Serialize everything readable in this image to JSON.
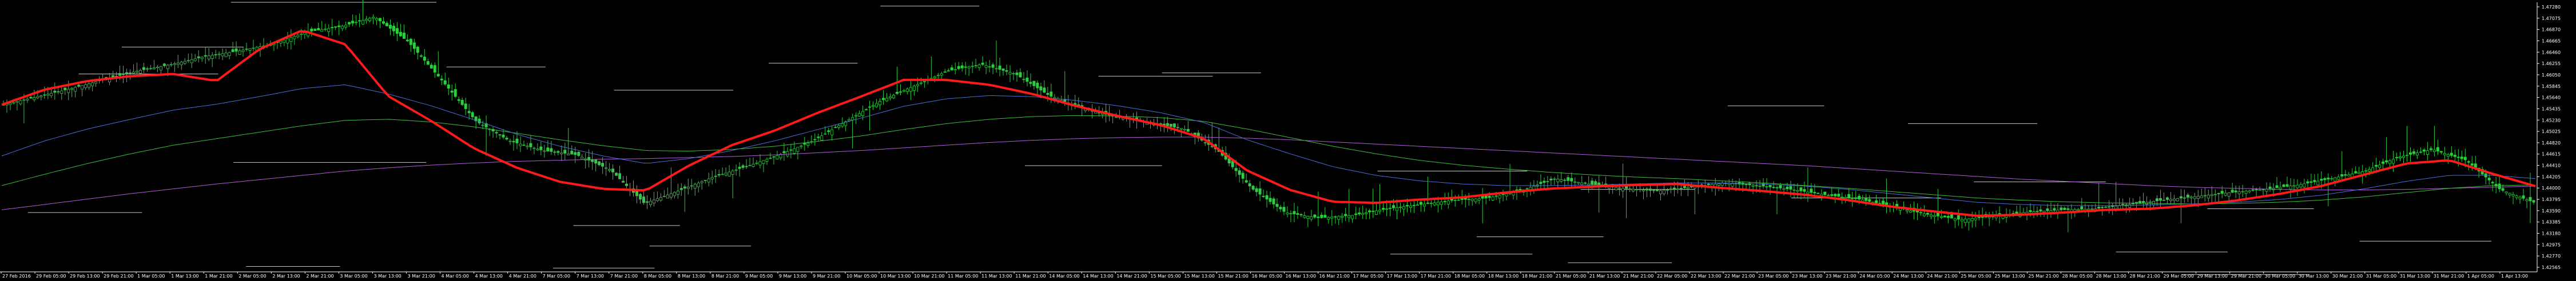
{
  "chart_data": {
    "type": "line",
    "title": "",
    "xlabel": "",
    "ylabel": "",
    "grid": false,
    "legend": "none",
    "ylim": [
      1.4245,
      1.4745
    ],
    "colors": {
      "background": "#000000",
      "candle": "#2ecc40",
      "axis": "#ffffff",
      "text": "#ffffff",
      "ma_fast": "#ff1a1a",
      "ma_blue": "#4a6fd8",
      "ma_green": "#3cbf3c",
      "ma_purple": "#b25cd8",
      "levels": "#c8c8c8"
    },
    "y_ticks": [
      "1.47280",
      "1.47075",
      "1.46870",
      "1.46665",
      "1.46460",
      "1.46255",
      "1.46050",
      "1.45845",
      "1.45640",
      "1.45435",
      "1.45230",
      "1.45025",
      "1.44820",
      "1.44615",
      "1.44410",
      "1.44205",
      "1.44000",
      "1.43795",
      "1.43590",
      "1.43385",
      "1.43180",
      "1.42975",
      "1.42770",
      "1.42565"
    ],
    "x_ticks": [
      "27 Feb 2016",
      "29 Feb 05:00",
      "29 Feb 13:00",
      "29 Feb 21:00",
      "1 Mar 05:00",
      "1 Mar 13:00",
      "1 Mar 21:00",
      "2 Mar 05:00",
      "2 Mar 13:00",
      "2 Mar 21:00",
      "3 Mar 05:00",
      "3 Mar 13:00",
      "3 Mar 21:00",
      "4 Mar 05:00",
      "4 Mar 13:00",
      "4 Mar 21:00",
      "7 Mar 05:00",
      "7 Mar 13:00",
      "7 Mar 21:00",
      "8 Mar 05:00",
      "8 Mar 13:00",
      "8 Mar 21:00",
      "9 Mar 05:00",
      "9 Mar 13:00",
      "9 Mar 21:00",
      "10 Mar 05:00",
      "10 Mar 13:00",
      "10 Mar 21:00",
      "11 Mar 05:00",
      "11 Mar 13:00",
      "11 Mar 21:00",
      "14 Mar 05:00",
      "14 Mar 13:00",
      "14 Mar 21:00",
      "15 Mar 05:00",
      "15 Mar 13:00",
      "15 Mar 21:00",
      "16 Mar 05:00",
      "16 Mar 13:00",
      "16 Mar 21:00",
      "17 Mar 05:00",
      "17 Mar 13:00",
      "17 Mar 21:00",
      "18 Mar 05:00",
      "18 Mar 13:00",
      "18 Mar 21:00",
      "21 Mar 05:00",
      "21 Mar 13:00",
      "21 Mar 21:00",
      "22 Mar 05:00",
      "22 Mar 13:00",
      "22 Mar 21:00",
      "23 Mar 05:00",
      "23 Mar 13:00",
      "23 Mar 21:00",
      "24 Mar 05:00",
      "24 Mar 13:00",
      "24 Mar 21:00",
      "25 Mar 05:00",
      "25 Mar 13:00",
      "25 Mar 21:00",
      "28 Mar 05:00",
      "28 Mar 13:00",
      "28 Mar 21:00",
      "29 Mar 05:00",
      "29 Mar 13:00",
      "29 Mar 21:00",
      "30 Mar 05:00",
      "30 Mar 13:00",
      "30 Mar 21:00",
      "31 Mar 05:00",
      "31 Mar 13:00",
      "31 Mar 21:00",
      "1 Apr 05:00",
      "1 Apr 13:00"
    ],
    "series": [
      {
        "key": "close",
        "values": [
          1.4555,
          1.457,
          1.4585,
          1.4602,
          1.4618,
          1.463,
          1.4645,
          1.4655,
          1.4668,
          1.469,
          1.47,
          1.4718,
          1.4672,
          1.46,
          1.4525,
          1.4488,
          1.447,
          1.4462,
          1.4434,
          1.4372,
          1.4395,
          1.442,
          1.444,
          1.4462,
          1.4488,
          1.4525,
          1.4562,
          1.459,
          1.4618,
          1.463,
          1.4612,
          1.4572,
          1.4548,
          1.4532,
          1.4522,
          1.451,
          1.447,
          1.44,
          1.4355,
          1.4345,
          1.435,
          1.4362,
          1.437,
          1.4378,
          1.4382,
          1.4396,
          1.4418,
          1.4408,
          1.44,
          1.4395,
          1.4402,
          1.441,
          1.4405,
          1.4398,
          1.4388,
          1.438,
          1.4366,
          1.4352,
          1.4342,
          1.4348,
          1.4356,
          1.436,
          1.4362,
          1.437,
          1.4378,
          1.4385,
          1.4392,
          1.4398,
          1.4406,
          1.4418,
          1.4432,
          1.4458,
          1.4472,
          1.4452,
          1.4398,
          1.4374
        ]
      },
      {
        "key": "ma_fast",
        "values": [
          1.4555,
          1.4583,
          1.4599,
          1.4608,
          1.4612,
          1.4599,
          1.4658,
          1.4693,
          1.4667,
          1.4571,
          1.4525,
          1.4474,
          1.4438,
          1.4412,
          1.4399,
          1.4396,
          1.4442,
          1.448,
          1.4507,
          1.454,
          1.457,
          1.4601,
          1.4601,
          1.4592,
          1.4575,
          1.4553,
          1.4534,
          1.4517,
          1.4492,
          1.4433,
          1.4397,
          1.4375,
          1.4373,
          1.4379,
          1.4383,
          1.4392,
          1.4399,
          1.4403,
          1.4406,
          1.4408,
          1.4401,
          1.4395,
          1.4388,
          1.4378,
          1.4366,
          1.4357,
          1.4349,
          1.4351,
          1.4355,
          1.436,
          1.4362,
          1.4368,
          1.4377,
          1.4389,
          1.4404,
          1.4425,
          1.4446,
          1.4452,
          1.4427,
          1.4404
        ]
      },
      {
        "key": "ma_blue",
        "values": [
          1.446,
          1.4488,
          1.451,
          1.4528,
          1.4545,
          1.4556,
          1.457,
          1.4585,
          1.4592,
          1.4575,
          1.4553,
          1.4527,
          1.45,
          1.4478,
          1.446,
          1.4446,
          1.4455,
          1.447,
          1.4488,
          1.4509,
          1.453,
          1.4552,
          1.4566,
          1.4572,
          1.457,
          1.4563,
          1.4553,
          1.454,
          1.4522,
          1.449,
          1.4464,
          1.444,
          1.4424,
          1.4414,
          1.4408,
          1.4405,
          1.4405,
          1.4406,
          1.4408,
          1.441,
          1.441,
          1.4408,
          1.4404,
          1.4398,
          1.439,
          1.4382,
          1.4374,
          1.437,
          1.4368,
          1.4368,
          1.4369,
          1.4371,
          1.4374,
          1.4379,
          1.4387,
          1.4399,
          1.4413,
          1.4424,
          1.4424,
          1.4418
        ]
      },
      {
        "key": "ma_green",
        "values": [
          1.4405,
          1.4426,
          1.4446,
          1.4464,
          1.448,
          1.4492,
          1.4504,
          1.4516,
          1.4526,
          1.4528,
          1.4523,
          1.4514,
          1.4502,
          1.449,
          1.4479,
          1.447,
          1.4469,
          1.4472,
          1.4478,
          1.4487,
          1.4497,
          1.4509,
          1.452,
          1.4528,
          1.4533,
          1.4535,
          1.4534,
          1.4531,
          1.4524,
          1.451,
          1.4494,
          1.4478,
          1.4464,
          1.4452,
          1.4443,
          1.4436,
          1.443,
          1.4425,
          1.4421,
          1.4418,
          1.4414,
          1.441,
          1.4405,
          1.44,
          1.4394,
          1.4388,
          1.4382,
          1.4378,
          1.4375,
          1.4373,
          1.4372,
          1.4371,
          1.4372,
          1.4374,
          1.4378,
          1.4384,
          1.4392,
          1.44,
          1.4405,
          1.4406
        ]
      },
      {
        "key": "ma_purple",
        "values": [
          1.436,
          1.437,
          1.438,
          1.439,
          1.4399,
          1.4408,
          1.4416,
          1.4424,
          1.4432,
          1.4438,
          1.4443,
          1.4447,
          1.445,
          1.4452,
          1.4454,
          1.4455,
          1.4457,
          1.4459,
          1.4462,
          1.4466,
          1.447,
          1.4475,
          1.448,
          1.4485,
          1.4489,
          1.4492,
          1.4494,
          1.4495,
          1.4495,
          1.4493,
          1.449,
          1.4486,
          1.4482,
          1.4478,
          1.4474,
          1.447,
          1.4466,
          1.4462,
          1.4458,
          1.4454,
          1.445,
          1.4446,
          1.4442,
          1.4437,
          1.4432,
          1.4427,
          1.4422,
          1.4417,
          1.4413,
          1.4409,
          1.4405,
          1.4402,
          1.44,
          1.4398,
          1.4397,
          1.4397,
          1.4398,
          1.44,
          1.4402,
          1.4404
        ]
      }
    ],
    "levels": [
      {
        "price": 1.4745,
        "from": 0.091,
        "to": 0.172
      },
      {
        "price": 1.4738,
        "from": 0.347,
        "to": 0.386
      },
      {
        "price": 1.4612,
        "from": 0.031,
        "to": 0.086
      },
      {
        "price": 1.4662,
        "from": 0.048,
        "to": 0.096
      },
      {
        "price": 1.4625,
        "from": 0.176,
        "to": 0.215
      },
      {
        "price": 1.4608,
        "from": 0.433,
        "to": 0.478
      },
      {
        "price": 1.4582,
        "from": 0.242,
        "to": 0.289
      },
      {
        "price": 1.4632,
        "from": 0.303,
        "to": 0.338
      },
      {
        "price": 1.4614,
        "from": 0.458,
        "to": 0.497
      },
      {
        "price": 1.4553,
        "from": 0.681,
        "to": 0.719
      },
      {
        "price": 1.452,
        "from": 0.752,
        "to": 0.803
      },
      {
        "price": 1.4448,
        "from": 0.092,
        "to": 0.168
      },
      {
        "price": 1.4442,
        "from": 0.404,
        "to": 0.458
      },
      {
        "price": 1.4432,
        "from": 0.543,
        "to": 0.602
      },
      {
        "price": 1.4412,
        "from": 0.778,
        "to": 0.83
      },
      {
        "price": 1.4398,
        "from": 0.623,
        "to": 0.668
      },
      {
        "price": 1.4382,
        "from": 0.706,
        "to": 0.765
      },
      {
        "price": 1.4362,
        "from": 0.87,
        "to": 0.912
      },
      {
        "price": 1.4355,
        "from": 0.011,
        "to": 0.056
      },
      {
        "price": 1.4331,
        "from": 0.226,
        "to": 0.268
      },
      {
        "price": 1.431,
        "from": 0.582,
        "to": 0.632
      },
      {
        "price": 1.4302,
        "from": 0.93,
        "to": 0.982
      },
      {
        "price": 1.4293,
        "from": 0.256,
        "to": 0.296
      },
      {
        "price": 1.4282,
        "from": 0.834,
        "to": 0.878
      },
      {
        "price": 1.4278,
        "from": 0.548,
        "to": 0.604
      },
      {
        "price": 1.4262,
        "from": 0.618,
        "to": 0.659
      },
      {
        "price": 1.424,
        "from": 0.86,
        "to": 0.91
      },
      {
        "price": 1.4252,
        "from": 0.218,
        "to": 0.258
      },
      {
        "price": 1.4255,
        "from": 0.097,
        "to": 0.134
      }
    ]
  }
}
